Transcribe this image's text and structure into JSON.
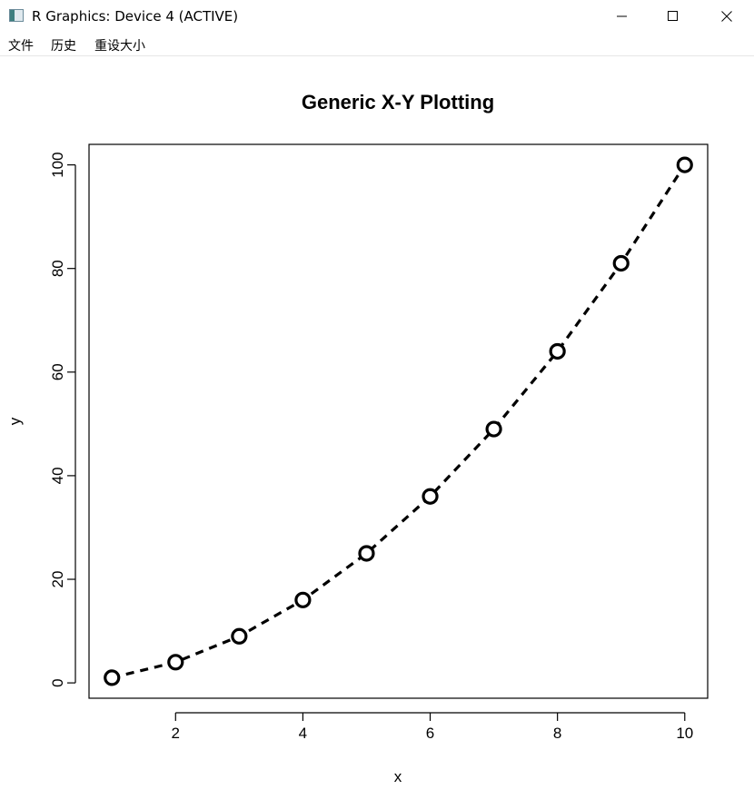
{
  "window": {
    "title": "R Graphics: Device 4 (ACTIVE)"
  },
  "menu": {
    "items": [
      "文件",
      "历史",
      "重设大小"
    ]
  },
  "icons": {
    "app": "r-graphics-app-icon",
    "minimize": "minimize-icon",
    "maximize": "maximize-icon",
    "close": "close-icon"
  },
  "chart_data": {
    "type": "line",
    "title": "Generic X-Y Plotting",
    "xlabel": "x",
    "ylabel": "y",
    "x": [
      1,
      2,
      3,
      4,
      5,
      6,
      7,
      8,
      9,
      10
    ],
    "series": [
      {
        "values": [
          1,
          4,
          9,
          16,
          25,
          36,
          49,
          64,
          81,
          100
        ]
      }
    ],
    "xticks": [
      2,
      4,
      6,
      8,
      10
    ],
    "yticks": [
      0,
      20,
      40,
      60,
      80,
      100
    ],
    "xlim": [
      0.64,
      10.36
    ],
    "ylim": [
      -2.96,
      103.96
    ],
    "line_style": "dashed",
    "marker": "open-circle",
    "color": "#000000",
    "grid": false,
    "legend": "none"
  }
}
